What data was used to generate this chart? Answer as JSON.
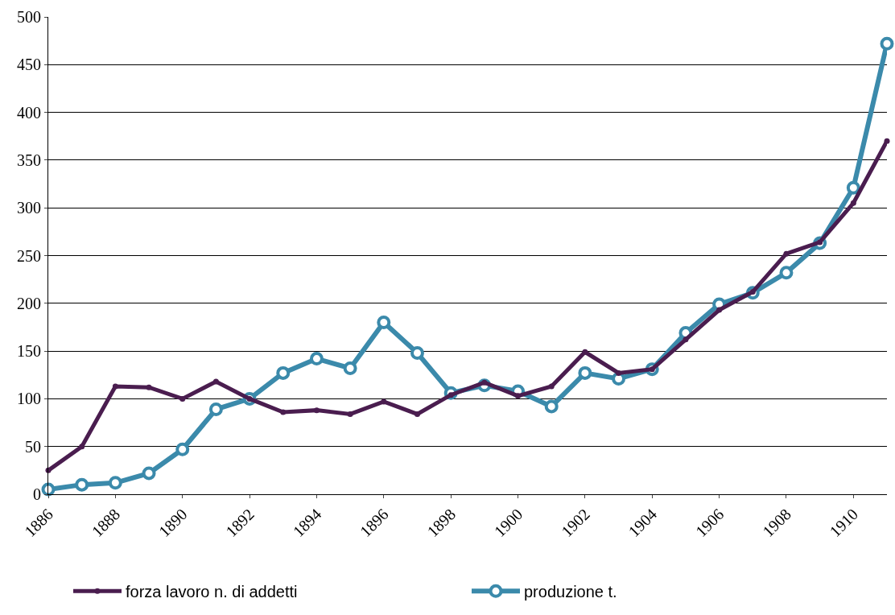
{
  "chart_data": {
    "type": "line",
    "x": [
      1886,
      1887,
      1888,
      1889,
      1890,
      1891,
      1892,
      1893,
      1894,
      1895,
      1896,
      1897,
      1898,
      1899,
      1900,
      1901,
      1902,
      1903,
      1904,
      1905,
      1906,
      1907,
      1908,
      1909,
      1910,
      1911
    ],
    "series": [
      {
        "name": "forza lavoro n. di addetti",
        "color": "#4a1d4f",
        "values": [
          25,
          50,
          113,
          112,
          100,
          118,
          100,
          86,
          88,
          84,
          97,
          84,
          104,
          117,
          103,
          113,
          149,
          127,
          131,
          162,
          193,
          212,
          252,
          264,
          305,
          370
        ]
      },
      {
        "name": "produzione t.",
        "color": "#3b8aab",
        "values": [
          5,
          10,
          12,
          22,
          47,
          89,
          100,
          127,
          142,
          132,
          180,
          148,
          106,
          114,
          108,
          92,
          127,
          121,
          131,
          169,
          199,
          211,
          232,
          263,
          321,
          472
        ]
      }
    ],
    "xlim": [
      1886,
      1911
    ],
    "xticks": [
      1886,
      1888,
      1890,
      1892,
      1894,
      1896,
      1898,
      1900,
      1902,
      1904,
      1906,
      1908,
      1910
    ],
    "ylim": [
      0,
      500
    ],
    "yticks": [
      0,
      50,
      100,
      150,
      200,
      250,
      300,
      350,
      400,
      450,
      500
    ],
    "grid": "y",
    "legend": "bottom",
    "marker": "circle",
    "line_style": "solid"
  }
}
